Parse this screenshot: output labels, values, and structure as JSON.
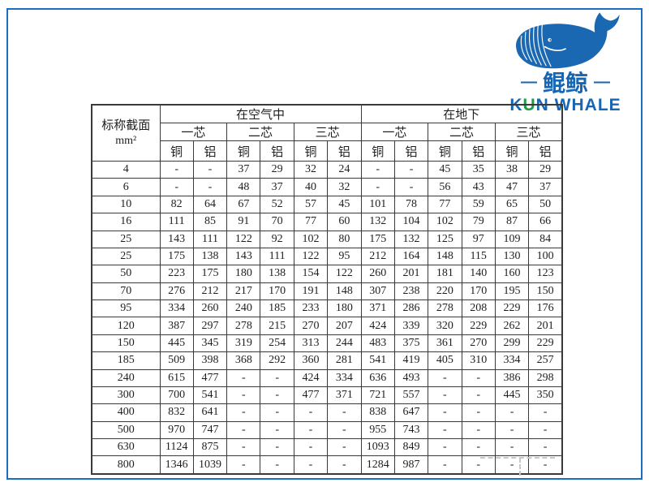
{
  "logo": {
    "cn": "鲲鲸",
    "dash_left": "—",
    "dash_right": "—",
    "en_k": "K",
    "en_u": "U",
    "en_rest": "N WHALE",
    "blue": "#1766b3",
    "green": "#1f9e45"
  },
  "table": {
    "corner_line1": "标称截面",
    "corner_line2": "mm²",
    "group_air": "在空气中",
    "group_ground": "在地下",
    "cores": [
      "一芯",
      "二芯",
      "三芯"
    ],
    "conductors": [
      "铜",
      "铝"
    ],
    "rows": [
      {
        "size": "4",
        "values": [
          "-",
          "-",
          "37",
          "29",
          "32",
          "24",
          "-",
          "-",
          "45",
          "35",
          "38",
          "29"
        ]
      },
      {
        "size": "6",
        "values": [
          "-",
          "-",
          "48",
          "37",
          "40",
          "32",
          "-",
          "-",
          "56",
          "43",
          "47",
          "37"
        ]
      },
      {
        "size": "10",
        "values": [
          "82",
          "64",
          "67",
          "52",
          "57",
          "45",
          "101",
          "78",
          "77",
          "59",
          "65",
          "50"
        ]
      },
      {
        "size": "16",
        "values": [
          "111",
          "85",
          "91",
          "70",
          "77",
          "60",
          "132",
          "104",
          "102",
          "79",
          "87",
          "66"
        ]
      },
      {
        "size": "25",
        "values": [
          "143",
          "111",
          "122",
          "92",
          "102",
          "80",
          "175",
          "132",
          "125",
          "97",
          "109",
          "84"
        ]
      },
      {
        "size": "25",
        "values": [
          "175",
          "138",
          "143",
          "111",
          "122",
          "95",
          "212",
          "164",
          "148",
          "115",
          "130",
          "100"
        ]
      },
      {
        "size": "50",
        "values": [
          "223",
          "175",
          "180",
          "138",
          "154",
          "122",
          "260",
          "201",
          "181",
          "140",
          "160",
          "123"
        ]
      },
      {
        "size": "70",
        "values": [
          "276",
          "212",
          "217",
          "170",
          "191",
          "148",
          "307",
          "238",
          "220",
          "170",
          "195",
          "150"
        ]
      },
      {
        "size": "95",
        "values": [
          "334",
          "260",
          "240",
          "185",
          "233",
          "180",
          "371",
          "286",
          "278",
          "208",
          "229",
          "176"
        ]
      },
      {
        "size": "120",
        "values": [
          "387",
          "297",
          "278",
          "215",
          "270",
          "207",
          "424",
          "339",
          "320",
          "229",
          "262",
          "201"
        ]
      },
      {
        "size": "150",
        "values": [
          "445",
          "345",
          "319",
          "254",
          "313",
          "244",
          "483",
          "375",
          "361",
          "270",
          "299",
          "229"
        ]
      },
      {
        "size": "185",
        "values": [
          "509",
          "398",
          "368",
          "292",
          "360",
          "281",
          "541",
          "419",
          "405",
          "310",
          "334",
          "257"
        ]
      },
      {
        "size": "240",
        "values": [
          "615",
          "477",
          "-",
          "-",
          "424",
          "334",
          "636",
          "493",
          "-",
          "-",
          "386",
          "298"
        ]
      },
      {
        "size": "300",
        "values": [
          "700",
          "541",
          "-",
          "-",
          "477",
          "371",
          "721",
          "557",
          "-",
          "-",
          "445",
          "350"
        ]
      },
      {
        "size": "400",
        "values": [
          "832",
          "641",
          "-",
          "-",
          "-",
          "-",
          "838",
          "647",
          "-",
          "-",
          "-",
          "-"
        ]
      },
      {
        "size": "500",
        "values": [
          "970",
          "747",
          "-",
          "-",
          "-",
          "-",
          "955",
          "743",
          "-",
          "-",
          "-",
          "-"
        ]
      },
      {
        "size": "630",
        "values": [
          "1124",
          "875",
          "-",
          "-",
          "-",
          "-",
          "1093",
          "849",
          "-",
          "-",
          "-",
          "-"
        ]
      },
      {
        "size": "800",
        "values": [
          "1346",
          "1039",
          "-",
          "-",
          "-",
          "-",
          "1284",
          "987",
          "-",
          "-",
          "-",
          "-"
        ]
      }
    ]
  },
  "frame_color": "#1a6fbd"
}
